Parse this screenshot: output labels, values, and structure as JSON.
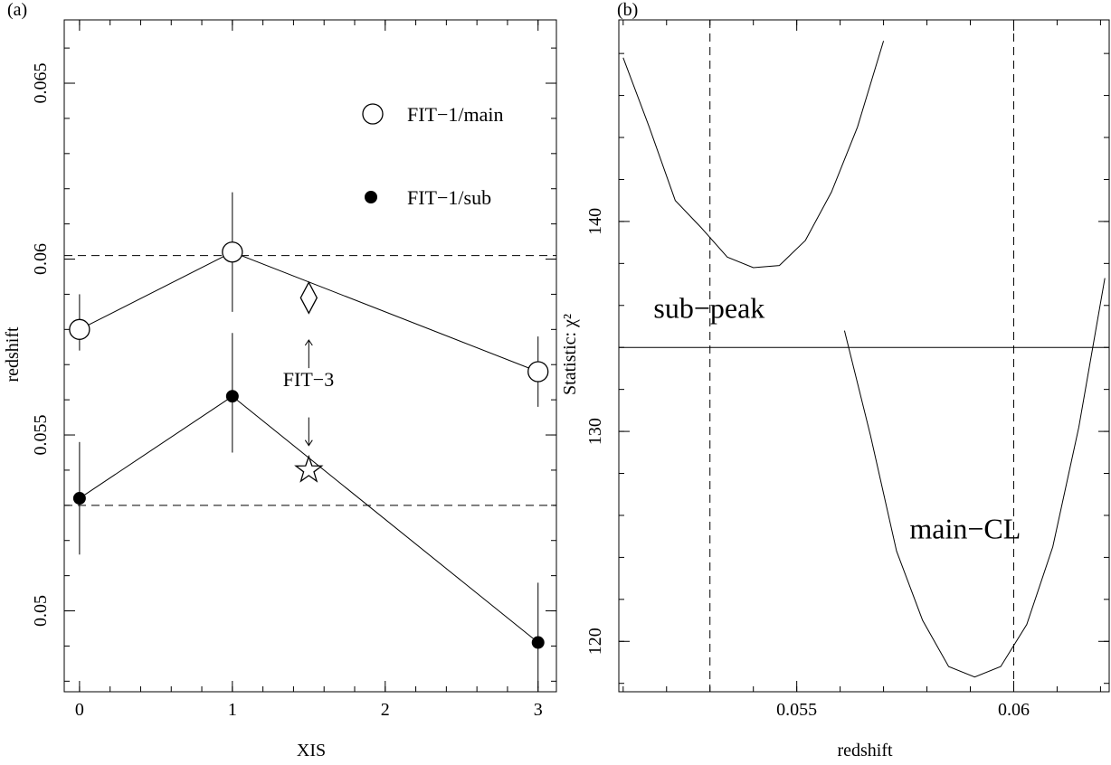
{
  "chart_data": [
    {
      "panel": "(a)",
      "type": "scatter",
      "xlabel": "XIS",
      "ylabel": "redshift",
      "xlim": [
        -0.1,
        3.12
      ],
      "ylim": [
        0.0477,
        0.0668
      ],
      "x_ticks": [
        0,
        1,
        2,
        3
      ],
      "y_ticks": [
        0.05,
        0.055,
        0.06,
        0.065
      ],
      "x_tick_labels": [
        "0",
        "1",
        "2",
        "3"
      ],
      "y_tick_labels": [
        "0.05",
        "0.055",
        "0.06",
        "0.065"
      ],
      "grid": false,
      "legend": {
        "placement": "top-right",
        "entries": [
          {
            "label": "FIT−1/main",
            "marker": "open-circle"
          },
          {
            "label": "FIT−1/sub",
            "marker": "filled-circle"
          }
        ]
      },
      "series": [
        {
          "name": "FIT−1/main",
          "marker": "open-circle",
          "connected": true,
          "points": [
            {
              "x": 0,
              "y": 0.058,
              "ylo": 0.0574,
              "yhi": 0.059
            },
            {
              "x": 1,
              "y": 0.0602,
              "ylo": 0.0585,
              "yhi": 0.0619
            },
            {
              "x": 3,
              "y": 0.0568,
              "ylo": 0.0558,
              "yhi": 0.0578
            }
          ]
        },
        {
          "name": "FIT−1/sub",
          "marker": "filled-circle",
          "connected": true,
          "points": [
            {
              "x": 0,
              "y": 0.0532,
              "ylo": 0.0516,
              "yhi": 0.0548
            },
            {
              "x": 1,
              "y": 0.0561,
              "ylo": 0.0545,
              "yhi": 0.0579
            },
            {
              "x": 3,
              "y": 0.0491,
              "ylo": 0.0478,
              "yhi": 0.0508
            }
          ]
        }
      ],
      "fit3": {
        "label": "FIT−3",
        "x": 1.5,
        "main": {
          "y": 0.0589,
          "marker": "diamond"
        },
        "sub": {
          "y": 0.054,
          "marker": "star"
        },
        "up_arrow_y": [
          0.0569,
          0.0577
        ],
        "down_arrow_y": [
          0.0555,
          0.0547
        ]
      },
      "reference_lines": [
        0.0601,
        0.053
      ]
    },
    {
      "panel": "(b)",
      "type": "line",
      "xlabel": "redshift",
      "ylabel": "Statistic: χ²",
      "xlim": [
        0.0509,
        0.0622
      ],
      "ylim": [
        117.6,
        149.6
      ],
      "x_ticks": [
        0.055,
        0.06
      ],
      "y_ticks": [
        120,
        130,
        140
      ],
      "x_tick_labels": [
        "0.055",
        "0.06"
      ],
      "y_tick_labels": [
        "120",
        "130",
        "140"
      ],
      "grid": false,
      "series": [
        {
          "name": "sub−peak",
          "x": [
            0.051,
            0.0516,
            0.0522,
            0.0528,
            0.0534,
            0.054,
            0.0546,
            0.0552,
            0.0558,
            0.0564,
            0.057
          ],
          "y": [
            147.8,
            144.5,
            141.0,
            139.7,
            138.3,
            137.8,
            137.9,
            139.1,
            141.4,
            144.5,
            148.6
          ]
        },
        {
          "name": "main−CL",
          "x": [
            0.0561,
            0.0567,
            0.0573,
            0.0579,
            0.0585,
            0.0591,
            0.0597,
            0.0603,
            0.0609,
            0.0615,
            0.0621
          ],
          "y": [
            134.8,
            129.8,
            124.3,
            121.0,
            118.8,
            118.3,
            118.8,
            120.8,
            124.5,
            130.2,
            137.3
          ]
        }
      ],
      "horizontal_line": 134.0,
      "vertical_lines": [
        0.053,
        0.06
      ],
      "annotations": [
        {
          "text": "sub−peak",
          "x": 0.0517,
          "y": 135.4
        },
        {
          "text": "main−CL",
          "x": 0.0576,
          "y": 124.9
        }
      ]
    }
  ]
}
